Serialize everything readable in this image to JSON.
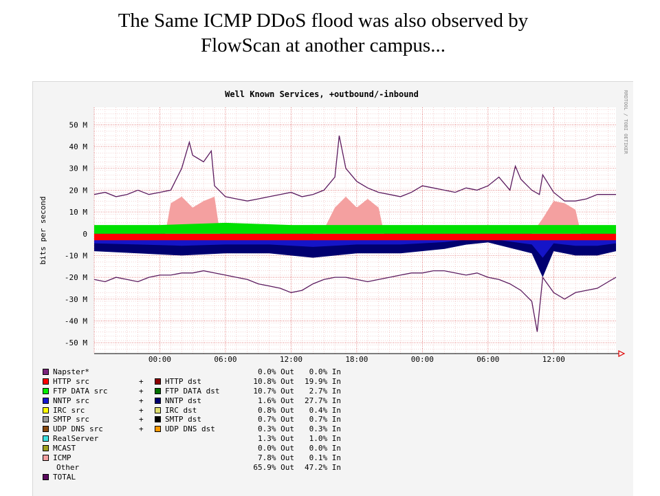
{
  "slide": {
    "title_lines": [
      "The Same ICMP DDoS flood was also observed by",
      "FlowScan at another campus..."
    ]
  },
  "chart_data": {
    "type": "area",
    "title": "Well Known Services, +outbound/-inbound",
    "ylabel": "bits per second",
    "watermark": "RRDTOOL / TOBI OETIKER",
    "ylim": [
      -55,
      58
    ],
    "y_unit": "M",
    "y_ticks": [
      "50 M",
      "40 M",
      "30 M",
      "20 M",
      "10 M",
      "0",
      "-10 M",
      "-20 M",
      "-30 M",
      "-40 M",
      "-50 M"
    ],
    "y_tick_values": [
      50,
      40,
      30,
      20,
      10,
      0,
      -10,
      -20,
      -30,
      -40,
      -50
    ],
    "x_ticks": [
      "00:00",
      "06:00",
      "12:00",
      "18:00",
      "00:00",
      "06:00",
      "12:00"
    ],
    "x_tick_hours": [
      6,
      12,
      18,
      24,
      30,
      36,
      42
    ],
    "x_range_hours": [
      0,
      47.7
    ],
    "grid": true,
    "colors": {
      "grid_major": "#d94a4a",
      "grid_minor": "#e9a3a3",
      "total": "#5a1a5e",
      "http": "#ff0000",
      "ftp_data": "#00e000",
      "nntp_dst": "#000070",
      "nntp": "#1515c8",
      "icmp": "#f4a0a0",
      "realserver": "#4de0e0",
      "arrow": "#e00000",
      "plot_bg": "#ffffff"
    },
    "series": [
      {
        "name": "TOTAL",
        "x": [
          0,
          1,
          2,
          3,
          4,
          5,
          6,
          7,
          8,
          8.7,
          9,
          10,
          10.7,
          11,
          12,
          13,
          14,
          15,
          16,
          17,
          18,
          19,
          20,
          21,
          22,
          22.4,
          23,
          24,
          25,
          26,
          27,
          28,
          29,
          30,
          31,
          32,
          33,
          34,
          35,
          36,
          37,
          38,
          38.5,
          39,
          40,
          40.7,
          41,
          42,
          43,
          44,
          45,
          46,
          47,
          47.7
        ],
        "values": [
          18,
          19,
          17,
          18,
          20,
          18,
          19,
          20,
          30,
          42,
          36,
          33,
          38,
          22,
          17,
          16,
          15,
          16,
          17,
          18,
          19,
          17,
          18,
          20,
          26,
          45,
          30,
          24,
          21,
          19,
          18,
          17,
          19,
          22,
          21,
          20,
          19,
          21,
          20,
          22,
          26,
          20,
          31,
          25,
          20,
          18,
          27,
          19,
          15,
          15,
          16,
          18,
          18,
          18
        ]
      },
      {
        "name": "TOTAL (inbound)",
        "x": [
          0,
          1,
          2,
          3,
          4,
          5,
          6,
          7,
          8,
          9,
          10,
          11,
          12,
          13,
          14,
          15,
          16,
          17,
          18,
          19,
          20,
          21,
          22,
          23,
          24,
          25,
          26,
          27,
          28,
          29,
          30,
          31,
          32,
          33,
          34,
          35,
          36,
          37,
          38,
          39,
          40,
          40.5,
          41,
          42,
          43,
          44,
          45,
          46,
          47,
          47.7
        ],
        "values": [
          -21,
          -22,
          -20,
          -21,
          -22,
          -20,
          -19,
          -19,
          -18,
          -18,
          -17,
          -18,
          -19,
          -20,
          -21,
          -23,
          -24,
          -25,
          -27,
          -26,
          -23,
          -21,
          -20,
          -20,
          -21,
          -22,
          -21,
          -20,
          -19,
          -18,
          -18,
          -17,
          -17,
          -18,
          -19,
          -18,
          -20,
          -21,
          -23,
          -26,
          -31,
          -45,
          -20,
          -27,
          -30,
          -27,
          -26,
          -25,
          -22,
          -20
        ]
      },
      {
        "name": "ICMP",
        "x": [
          0,
          6.5,
          7,
          8,
          9,
          10,
          11,
          11.5,
          12,
          20,
          21,
          22,
          23,
          24,
          25,
          26,
          26.5,
          40,
          41,
          42,
          43,
          44,
          44.5,
          47.7
        ],
        "values": [
          0,
          0,
          14,
          17,
          12,
          15,
          17,
          0,
          0,
          0,
          2,
          12,
          17,
          12,
          16,
          12,
          0,
          0,
          7,
          15,
          14,
          11,
          0,
          0
        ]
      },
      {
        "name": "FTP DATA src",
        "x": [
          0,
          6,
          12,
          18,
          24,
          30,
          36,
          42,
          47.7
        ],
        "values": [
          4,
          4,
          5,
          4,
          4,
          4,
          4,
          4,
          4
        ]
      },
      {
        "name": "HTTP src",
        "x": [
          0,
          47.7
        ],
        "values": [
          -3,
          -3
        ]
      },
      {
        "name": "NNTP dst",
        "x": [
          0,
          4,
          8,
          12,
          16,
          20,
          24,
          28,
          32,
          34,
          36,
          40,
          41,
          42,
          44,
          46,
          47.7
        ],
        "values": [
          -8,
          -9,
          -10,
          -9,
          -9,
          -11,
          -9,
          -9,
          -7,
          -5,
          -4,
          -9,
          -20,
          -8,
          -10,
          -10,
          -8
        ]
      }
    ],
    "legend": [
      {
        "left": "Napster*",
        "plus": "",
        "right": "",
        "out": "0.0% Out",
        "in": "0.0% In",
        "color_left": "#7a247c",
        "color_right": ""
      },
      {
        "left": "HTTP src",
        "plus": "+",
        "right": "HTTP dst",
        "out": "10.8% Out",
        "in": "19.9% In",
        "color_left": "#ff0000",
        "color_right": "#8c0000"
      },
      {
        "left": "FTP DATA src",
        "plus": "+",
        "right": "FTP DATA dst",
        "out": "10.7% Out",
        "in": "2.7% In",
        "color_left": "#00ee00",
        "color_right": "#007000"
      },
      {
        "left": "NNTP src",
        "plus": "+",
        "right": "NNTP dst",
        "out": "1.6% Out",
        "in": "27.7% In",
        "color_left": "#1515d0",
        "color_right": "#000070"
      },
      {
        "left": "IRC src",
        "plus": "+",
        "right": "IRC dst",
        "out": "0.8% Out",
        "in": "0.4% In",
        "color_left": "#ffff00",
        "color_right": "#e0e070"
      },
      {
        "left": "SMTP src",
        "plus": "+",
        "right": "SMTP dst",
        "out": "0.7% Out",
        "in": "0.7% In",
        "color_left": "#9a9a9a",
        "color_right": "#000000"
      },
      {
        "left": "UDP DNS src",
        "plus": "+",
        "right": "UDP DNS dst",
        "out": "0.3% Out",
        "in": "0.3% In",
        "color_left": "#8a4a10",
        "color_right": "#ff9a00"
      },
      {
        "left": "RealServer",
        "plus": "",
        "right": "",
        "out": "1.3% Out",
        "in": "1.0% In",
        "color_left": "#40e0e0",
        "color_right": ""
      },
      {
        "left": "MCAST",
        "plus": "",
        "right": "",
        "out": "0.0% Out",
        "in": "0.0% In",
        "color_left": "#a0a020",
        "color_right": ""
      },
      {
        "left": "ICMP",
        "plus": "",
        "right": "",
        "out": "7.8% Out",
        "in": "0.1% In",
        "color_left": "#f4a0a0",
        "color_right": ""
      },
      {
        "left": "Other",
        "plus": "",
        "right": "",
        "out": "65.9% Out",
        "in": "47.2% In",
        "color_left": "",
        "color_right": ""
      },
      {
        "left": "TOTAL",
        "plus": "",
        "right": "",
        "out": "",
        "in": "",
        "color_left": "#5a0a5e",
        "color_right": ""
      }
    ]
  }
}
